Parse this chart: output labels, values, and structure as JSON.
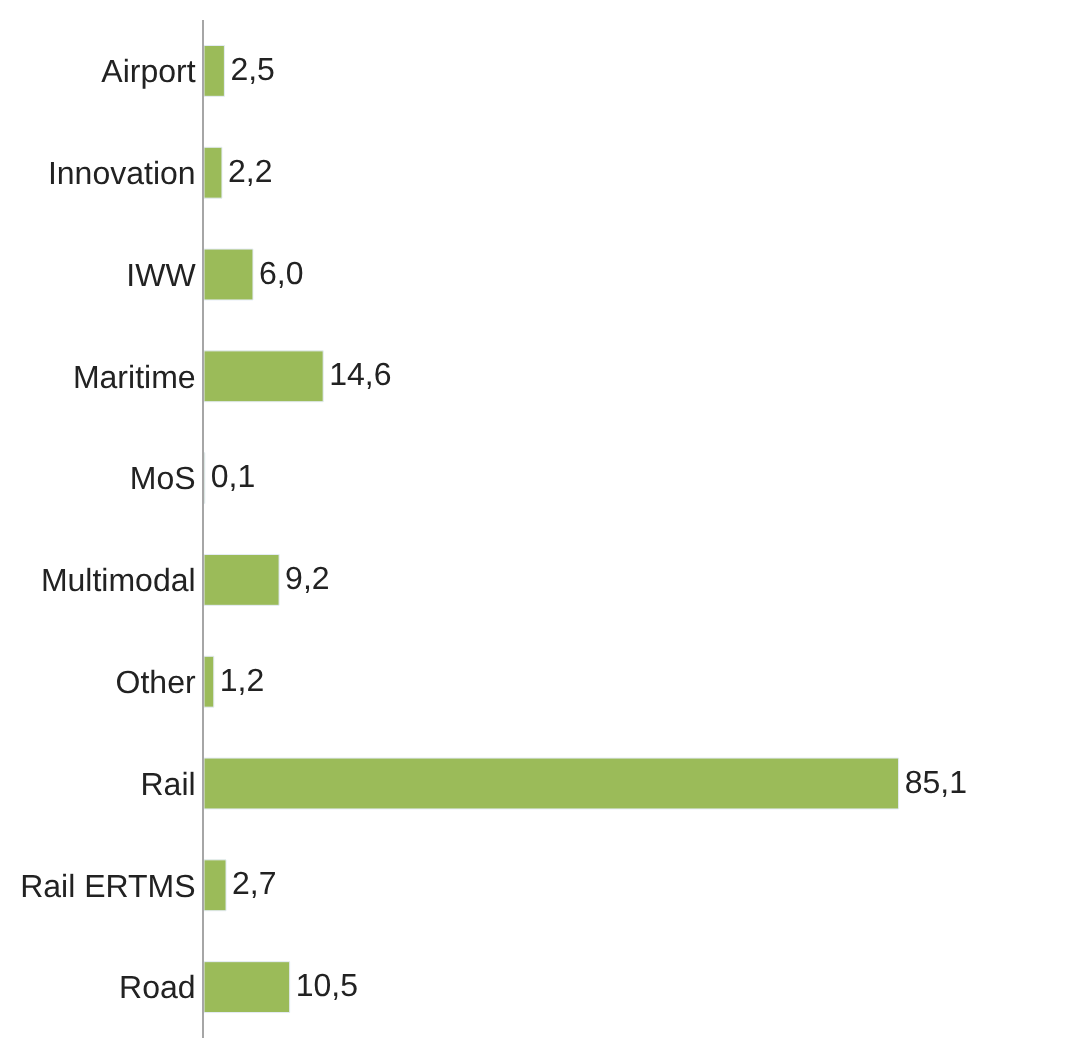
{
  "chart_data": {
    "type": "bar",
    "orientation": "horizontal",
    "categories": [
      "Airport",
      "Innovation",
      "IWW",
      "Maritime",
      "MoS",
      "Multimodal",
      "Other",
      "Rail",
      "Rail ERTMS",
      "Road"
    ],
    "values": [
      2.5,
      2.2,
      6.0,
      14.6,
      0.1,
      9.2,
      1.2,
      85.1,
      2.7,
      10.5
    ],
    "value_labels": [
      "2,5",
      "2,2",
      "6,0",
      "14,6",
      "0,1",
      "9,2",
      "1,2",
      "85,1",
      "2,7",
      "10,5"
    ],
    "color": "#9bbb59"
  }
}
